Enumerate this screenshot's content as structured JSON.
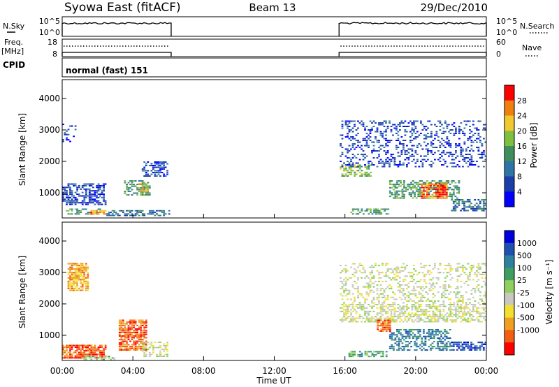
{
  "header": {
    "station": "Syowa East (fitACF)",
    "beam": "Beam 13",
    "date": "29/Dec/2010"
  },
  "labels": {
    "nsky": "N.Sky",
    "nsearch": "N.Search",
    "freq_line1": "Freq.",
    "freq_line2": "[MHz]",
    "nave": "Nave",
    "cpid": "CPID",
    "cpid_value": "normal (fast) 151"
  },
  "noise_axis": {
    "left_top": "10^5",
    "left_bottom": "10^0",
    "right_top": "10^5",
    "right_bottom": "10^0"
  },
  "freq_axis": {
    "left_top": "18",
    "left_bottom": "8",
    "right_top": "60",
    "right_bottom": "0"
  },
  "colors": {
    "power_scale": [
      "#0000ff",
      "#1a3da8",
      "#2e74a6",
      "#3e8f5c",
      "#7fbf3f",
      "#f0c830",
      "#f07f10",
      "#ff0000"
    ],
    "velocity_scale": [
      "#0000dd",
      "#1f4fb0",
      "#2f7fa0",
      "#3e9e60",
      "#90d060",
      "#c8c8c0",
      "#f0e030",
      "#f0a020",
      "#f06010",
      "#ff0000"
    ],
    "ground_scatter": "#b8b8a8"
  },
  "chart_data": [
    {
      "type": "heatmap",
      "name": "power",
      "ylabel": "Slant Range [km]",
      "xlabel": "Time UT",
      "x_ticks": [
        "00:00",
        "04:00",
        "08:00",
        "12:00",
        "16:00",
        "20:00",
        "00:00"
      ],
      "y_ticks": [
        1000,
        2000,
        3000,
        4000
      ],
      "ylim": [
        200,
        4600
      ],
      "xlim_hours": [
        0,
        24
      ],
      "colorbar_label": "Power [dB]",
      "colorbar_ticks": [
        4,
        8,
        12,
        16,
        20,
        24,
        28
      ],
      "data_intervals_ut": [
        [
          "00:00",
          "06:10"
        ],
        [
          "15:40",
          "24:00"
        ]
      ],
      "patches": [
        {
          "t0": 0.0,
          "t1": 0.8,
          "r0": 2600,
          "r1": 3200,
          "level": 1
        },
        {
          "t0": 0.2,
          "t1": 2.2,
          "r0": 300,
          "r1": 500,
          "level": 3
        },
        {
          "t0": 1.5,
          "t1": 2.5,
          "r0": 300,
          "r1": 450,
          "level": 6
        },
        {
          "t0": 0.0,
          "t1": 2.5,
          "r0": 600,
          "r1": 1300,
          "level": 1
        },
        {
          "t0": 3.5,
          "t1": 5.0,
          "r0": 900,
          "r1": 1400,
          "level": 3
        },
        {
          "t0": 4.3,
          "t1": 4.9,
          "r0": 1000,
          "r1": 1300,
          "level": 5
        },
        {
          "t0": 2.5,
          "t1": 6.1,
          "r0": 250,
          "r1": 450,
          "level": 2
        },
        {
          "t0": 4.5,
          "t1": 6.0,
          "r0": 1500,
          "r1": 2000,
          "level": 1
        },
        {
          "t0": 15.7,
          "t1": 17.5,
          "r0": 1500,
          "r1": 1900,
          "level": 4
        },
        {
          "t0": 16.2,
          "t1": 18.5,
          "r0": 300,
          "r1": 500,
          "level": 3
        },
        {
          "t0": 18.5,
          "t1": 22.5,
          "r0": 800,
          "r1": 1400,
          "level": 3
        },
        {
          "t0": 20.3,
          "t1": 21.8,
          "r0": 800,
          "r1": 1300,
          "level": 6
        },
        {
          "t0": 21.2,
          "t1": 21.7,
          "r0": 850,
          "r1": 1200,
          "level": 7
        },
        {
          "t0": 15.7,
          "t1": 24.0,
          "r0": 1800,
          "r1": 3300,
          "level": 1
        },
        {
          "t0": 22.0,
          "t1": 24.0,
          "r0": 400,
          "r1": 800,
          "level": 2
        }
      ]
    },
    {
      "type": "heatmap",
      "name": "velocity",
      "ylabel": "Slant Range [km]",
      "xlabel": "Time UT",
      "x_ticks": [
        "00:00",
        "04:00",
        "08:00",
        "12:00",
        "16:00",
        "20:00",
        "00:00"
      ],
      "y_ticks": [
        1000,
        2000,
        3000,
        4000
      ],
      "ylim": [
        200,
        4600
      ],
      "xlim_hours": [
        0,
        24
      ],
      "colorbar_label": "Velocity [m s⁻¹]",
      "colorbar_ticks": [
        "1000",
        "500",
        "100",
        "25",
        "-25",
        "-100",
        "-500",
        "-1000"
      ],
      "data_intervals_ut": [
        [
          "00:00",
          "06:10"
        ],
        [
          "15:40",
          "24:00"
        ]
      ],
      "patches": [
        {
          "t0": 0.0,
          "t1": 2.5,
          "r0": 250,
          "r1": 700,
          "level": 8
        },
        {
          "t0": 0.3,
          "t1": 1.5,
          "r0": 2400,
          "r1": 3300,
          "level": 7
        },
        {
          "t0": 3.2,
          "t1": 4.8,
          "r0": 500,
          "r1": 1500,
          "level": 8
        },
        {
          "t0": 1.0,
          "t1": 3.0,
          "r0": 200,
          "r1": 350,
          "level": 4
        },
        {
          "t0": 4.5,
          "t1": 6.0,
          "r0": 300,
          "r1": 800,
          "level": 5
        },
        {
          "t0": 15.7,
          "t1": 24.0,
          "r0": 1400,
          "r1": 2000,
          "level": 5
        },
        {
          "t0": 18.5,
          "t1": 22.0,
          "r0": 500,
          "r1": 1200,
          "level": 2
        },
        {
          "t0": 16.2,
          "t1": 18.5,
          "r0": 300,
          "r1": 500,
          "level": 3
        },
        {
          "t0": 17.8,
          "t1": 18.6,
          "r0": 1100,
          "r1": 1500,
          "level": 8
        },
        {
          "t0": 22.0,
          "t1": 24.0,
          "r0": 500,
          "r1": 800,
          "level": 1
        },
        {
          "t0": 15.7,
          "t1": 24.0,
          "r0": 2000,
          "r1": 3300,
          "level": 5
        }
      ]
    }
  ]
}
